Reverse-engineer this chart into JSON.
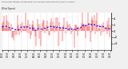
{
  "title": "Milwaukee Weather Normalized and Average Wind Direction (Last 24 Hours)",
  "subtitle": "Wind Speed",
  "bg_color": "#f0f0f0",
  "plot_bg_color": "#ffffff",
  "bar_color": "#ff0000",
  "trend_color": "#0000ff",
  "grid_color": "#aaaaaa",
  "ylim": [
    -6,
    6
  ],
  "n_points": 144,
  "seed": 42,
  "noise_amplitude": 2.2,
  "spike_prob": 0.04,
  "spike_amplitude": 5.5,
  "base_level": 1.5
}
